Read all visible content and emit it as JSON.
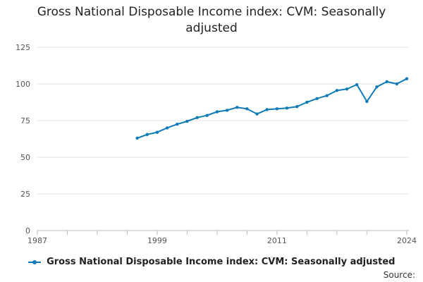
{
  "chart_data": {
    "type": "line",
    "title_lines": [
      "Gross National Disposable Income index: CVM: Seasonally",
      "adjusted"
    ],
    "xlabel": "",
    "ylabel": "",
    "xlim": [
      1987,
      2024
    ],
    "ylim": [
      0,
      125
    ],
    "y_ticks": [
      0,
      25,
      50,
      75,
      100,
      125
    ],
    "x_tick_labels": [
      "1987",
      "1999",
      "2011",
      "2024"
    ],
    "x_tick_values": [
      1987,
      1999,
      2011,
      2024
    ],
    "minor_x_ticks": [
      1987,
      1990,
      1993,
      1996,
      1999,
      2002,
      2005,
      2008,
      2011,
      2014,
      2017,
      2020,
      2024
    ],
    "grid": true,
    "legend_position": "bottom",
    "series": [
      {
        "name": "Gross National Disposable Income index: CVM: Seasonally adjusted",
        "color": "#0f7ab8",
        "x": [
          1997,
          1998,
          1999,
          2000,
          2001,
          2002,
          2003,
          2004,
          2005,
          2006,
          2007,
          2008,
          2009,
          2010,
          2011,
          2012,
          2013,
          2014,
          2015,
          2016,
          2017,
          2018,
          2019,
          2020,
          2021,
          2022,
          2023,
          2024
        ],
        "values": [
          63,
          65.5,
          67,
          70,
          72.5,
          74.5,
          77,
          78.5,
          81,
          82,
          84,
          83,
          79.5,
          82.5,
          83,
          83.5,
          84.5,
          87.5,
          90,
          92,
          95.5,
          96.5,
          99.5,
          88,
          98,
          101.5,
          100,
          103.5
        ]
      }
    ]
  },
  "source_label": "Source:"
}
